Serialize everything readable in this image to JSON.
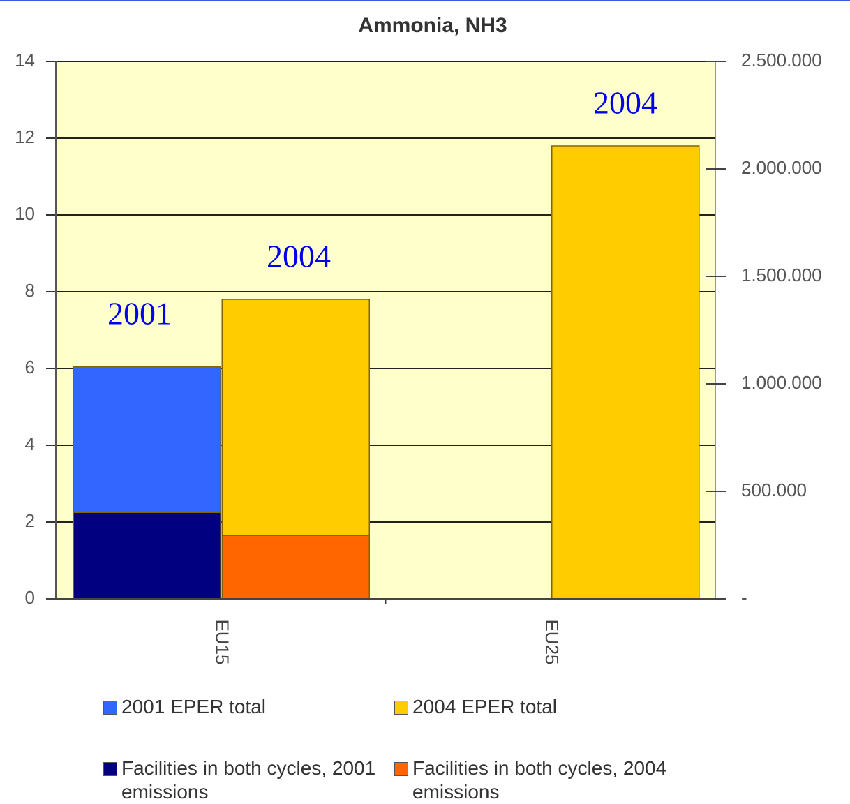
{
  "chart_data": {
    "type": "bar",
    "title": "Ammonia, NH3",
    "categories": [
      "EU15",
      "EU25"
    ],
    "series": [
      {
        "name": "2001 EPER total",
        "color": "#3366ff",
        "values": [
          6.05,
          null
        ]
      },
      {
        "name": "2004 EPER total",
        "color": "#ffcc00",
        "values": [
          7.8,
          11.8
        ]
      },
      {
        "name": "Facilities in both cycles, 2001 emissions",
        "color": "#000080",
        "values": [
          2.25,
          null
        ]
      },
      {
        "name": "Facilities in both cycles, 2004 emissions",
        "color": "#ff6600",
        "values": [
          1.65,
          null
        ]
      }
    ],
    "annotations": [
      "2001",
      "2004",
      "2004"
    ],
    "ylim": [
      0,
      14
    ],
    "yticks": [
      0,
      2,
      4,
      6,
      8,
      10,
      12,
      14
    ],
    "y2lim": [
      0,
      2500000
    ],
    "y2ticks": [
      {
        "value": 0,
        "label": "-"
      },
      {
        "value": 500000,
        "label": "500.000"
      },
      {
        "value": 1000000,
        "label": "1.000.000"
      },
      {
        "value": 1500000,
        "label": "1.500.000"
      },
      {
        "value": 2000000,
        "label": "2.000.000"
      },
      {
        "value": 2500000,
        "label": "2.500.000"
      }
    ],
    "grid": true,
    "plot_background": "#ffffcc"
  }
}
